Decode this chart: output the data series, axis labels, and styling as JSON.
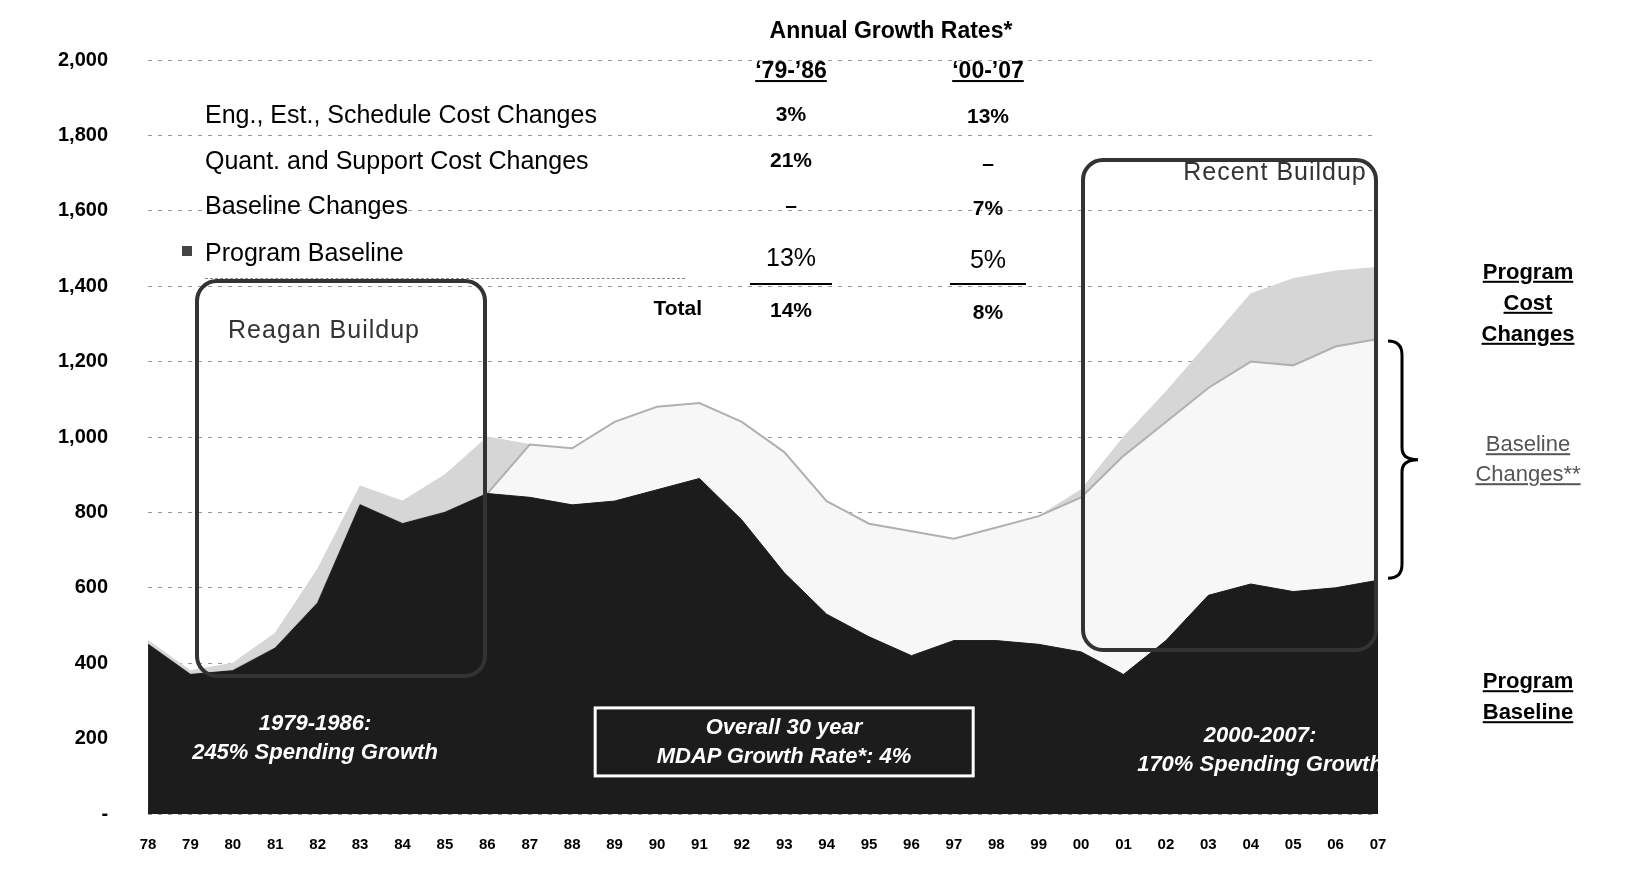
{
  "chart_data": {
    "type": "area",
    "stacked": true,
    "categories": [
      "78",
      "79",
      "80",
      "81",
      "82",
      "83",
      "84",
      "85",
      "86",
      "87",
      "88",
      "89",
      "90",
      "91",
      "92",
      "93",
      "94",
      "95",
      "96",
      "97",
      "98",
      "99",
      "00",
      "01",
      "02",
      "03",
      "04",
      "05",
      "06",
      "07"
    ],
    "series": [
      {
        "name": "Program Baseline",
        "color": "#1c1c1c",
        "values": [
          450,
          370,
          380,
          440,
          560,
          820,
          770,
          800,
          850,
          840,
          820,
          830,
          860,
          890,
          780,
          640,
          530,
          470,
          420,
          460,
          460,
          450,
          430,
          370,
          460,
          580,
          610,
          590,
          600,
          620
        ]
      },
      {
        "name": "Baseline Changes**",
        "color": "#f7f7f7",
        "values": [
          0,
          0,
          0,
          0,
          0,
          0,
          0,
          0,
          0,
          140,
          150,
          210,
          220,
          200,
          260,
          320,
          300,
          300,
          330,
          270,
          300,
          340,
          410,
          580,
          580,
          550,
          590,
          600,
          640,
          640
        ]
      },
      {
        "name": "Program Cost Changes",
        "color": "#d6d6d6",
        "values": [
          10,
          10,
          20,
          40,
          90,
          50,
          60,
          100,
          150,
          0,
          0,
          0,
          0,
          0,
          0,
          0,
          0,
          0,
          0,
          0,
          0,
          0,
          20,
          50,
          80,
          120,
          180,
          230,
          200,
          190
        ]
      }
    ],
    "ylim": [
      0,
      2000
    ],
    "yticks": [
      {
        "value": 0,
        "label": "-"
      },
      200,
      400,
      600,
      800,
      {
        "value": 1000,
        "label": "1,000"
      },
      {
        "value": 1200,
        "label": "1,200"
      },
      {
        "value": 1400,
        "label": "1,400"
      },
      {
        "value": 1600,
        "label": "1,600"
      },
      {
        "value": 1800,
        "label": "1,800"
      },
      {
        "value": 2000,
        "label": "2,000"
      }
    ],
    "grid": "y",
    "line_style": "dashed",
    "legend": false,
    "annotations": [
      "Annual Growth Rates*",
      "‘79-’86",
      "‘00-’07",
      "Eng., Est., Schedule Cost Changes",
      "3%",
      "13%",
      "Quant. and Support Cost Changes",
      "21%",
      "–",
      "Baseline Changes",
      "–",
      "7%",
      "Program Baseline",
      "13%",
      "5%",
      "Total",
      "14%",
      "8%",
      "Reagan Buildup",
      "Recent Buildup",
      "1979-1986:\n245% Spending Growth",
      "Overall 30 year\nMDAP Growth Rate*: 4%",
      "2000-2007:\n170% Spending Growth"
    ]
  }
}
